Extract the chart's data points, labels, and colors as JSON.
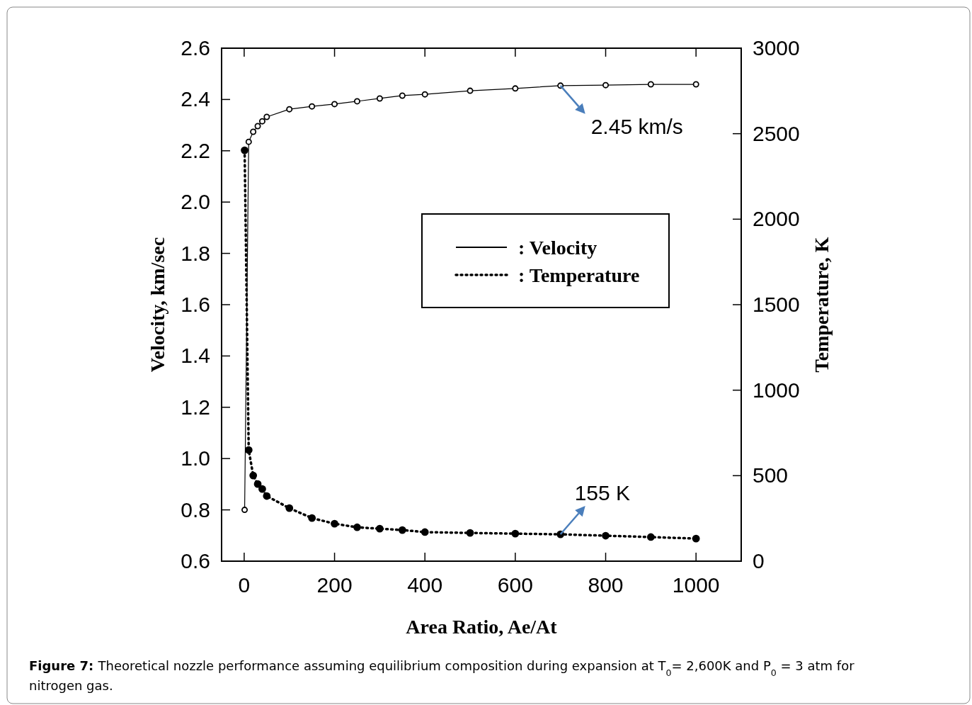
{
  "chart_data": {
    "type": "line",
    "xlabel": "Area Ratio, Ae/At",
    "ylabel": "Velocity, km/sec",
    "y2label": "Temperature, K",
    "xlim": [
      -50,
      1100
    ],
    "xticks": [
      0,
      200,
      400,
      600,
      800,
      1000
    ],
    "ylim": [
      0.6,
      2.6
    ],
    "yticks": [
      {
        "value": 0.6,
        "label": "0.6"
      },
      {
        "value": 0.8,
        "label": "0.8"
      },
      {
        "value": 1.0,
        "label": "1.0"
      },
      {
        "value": 1.2,
        "label": "1.2"
      },
      {
        "value": 1.4,
        "label": "1.4"
      },
      {
        "value": 1.6,
        "label": "1.6"
      },
      {
        "value": 1.8,
        "label": "1.8"
      },
      {
        "value": 2.0,
        "label": "2.0"
      },
      {
        "value": 2.2,
        "label": "2.2"
      },
      {
        "value": 2.4,
        "label": "2.4"
      },
      {
        "value": 2.6,
        "label": "2.6"
      }
    ],
    "y2lim": [
      0,
      3000
    ],
    "y2ticks": [
      0,
      500,
      1000,
      1500,
      2000,
      2500,
      3000
    ],
    "marker": "circle",
    "legend": "right",
    "grid": false,
    "series": [
      {
        "name": ": Velocity",
        "color": "#000000",
        "line_style": "solid",
        "x": [
          1,
          10,
          20,
          30,
          40,
          50,
          100,
          150,
          200,
          250,
          300,
          350,
          400,
          500,
          600,
          700,
          800,
          900,
          1000
        ],
        "values": [
          0.8,
          2.235,
          2.274,
          2.296,
          2.315,
          2.332,
          2.362,
          2.373,
          2.382,
          2.393,
          2.404,
          2.415,
          2.42,
          2.434,
          2.443,
          2.454,
          2.456,
          2.459,
          2.459
        ]
      },
      {
        "name": ": Temperature",
        "color": "#000000",
        "line_style": "dotted",
        "axis": "y2",
        "x": [
          1,
          10,
          20,
          30,
          40,
          50,
          100,
          150,
          200,
          250,
          300,
          350,
          400,
          500,
          600,
          700,
          800,
          900,
          1000
        ],
        "values": [
          2403,
          650,
          501,
          451,
          422,
          381,
          310,
          252,
          219,
          198,
          190,
          182,
          170,
          165,
          161,
          157,
          149,
          141,
          132
        ]
      }
    ],
    "annotations": [
      {
        "text": "2.45 km/s",
        "x": 700,
        "y": 2.454
      },
      {
        "text": "155 K",
        "x": 700,
        "y": 0.705
      },
      "Figure 7: Theoretical nozzle performance assuming equilibrium composition during expansion at T$_{0}$= 2,600K and P$_{0}$ = 3 atm for nitrogen gas."
    ]
  }
}
